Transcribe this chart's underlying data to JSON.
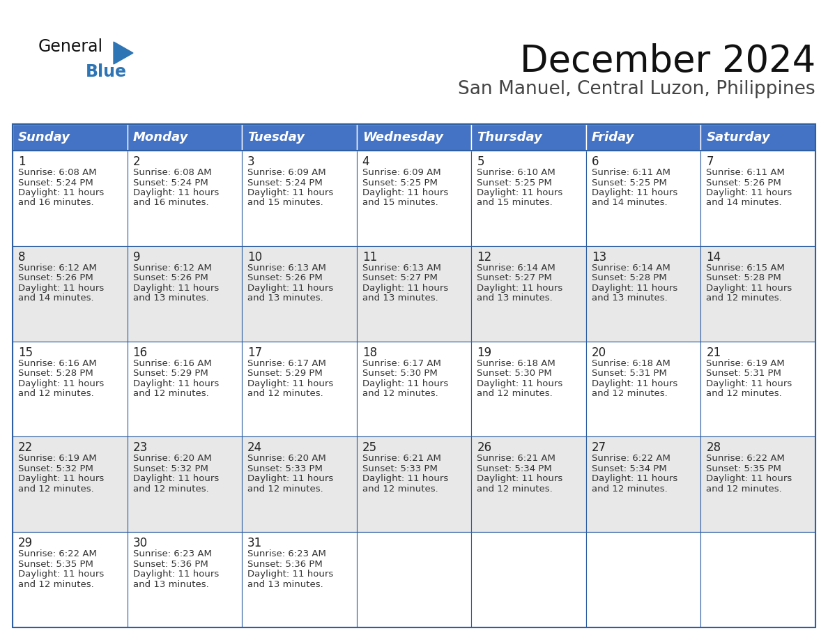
{
  "title": "December 2024",
  "subtitle": "San Manuel, Central Luzon, Philippines",
  "header_color": "#4472C4",
  "header_text_color": "#FFFFFF",
  "cell_bg_even": "#FFFFFF",
  "cell_bg_odd": "#E8E8E8",
  "border_color": "#2E5FA3",
  "text_color": "#333333",
  "day_number_color": "#222222",
  "day_names": [
    "Sunday",
    "Monday",
    "Tuesday",
    "Wednesday",
    "Thursday",
    "Friday",
    "Saturday"
  ],
  "title_fontsize": 38,
  "subtitle_fontsize": 19,
  "day_header_fontsize": 13,
  "cell_day_fontsize": 12,
  "cell_text_fontsize": 9.5,
  "weeks": [
    [
      {
        "day": 1,
        "sunrise": "6:08 AM",
        "sunset": "5:24 PM",
        "daylight": "11 hours\nand 16 minutes."
      },
      {
        "day": 2,
        "sunrise": "6:08 AM",
        "sunset": "5:24 PM",
        "daylight": "11 hours\nand 16 minutes."
      },
      {
        "day": 3,
        "sunrise": "6:09 AM",
        "sunset": "5:24 PM",
        "daylight": "11 hours\nand 15 minutes."
      },
      {
        "day": 4,
        "sunrise": "6:09 AM",
        "sunset": "5:25 PM",
        "daylight": "11 hours\nand 15 minutes."
      },
      {
        "day": 5,
        "sunrise": "6:10 AM",
        "sunset": "5:25 PM",
        "daylight": "11 hours\nand 15 minutes."
      },
      {
        "day": 6,
        "sunrise": "6:11 AM",
        "sunset": "5:25 PM",
        "daylight": "11 hours\nand 14 minutes."
      },
      {
        "day": 7,
        "sunrise": "6:11 AM",
        "sunset": "5:26 PM",
        "daylight": "11 hours\nand 14 minutes."
      }
    ],
    [
      {
        "day": 8,
        "sunrise": "6:12 AM",
        "sunset": "5:26 PM",
        "daylight": "11 hours\nand 14 minutes."
      },
      {
        "day": 9,
        "sunrise": "6:12 AM",
        "sunset": "5:26 PM",
        "daylight": "11 hours\nand 13 minutes."
      },
      {
        "day": 10,
        "sunrise": "6:13 AM",
        "sunset": "5:26 PM",
        "daylight": "11 hours\nand 13 minutes."
      },
      {
        "day": 11,
        "sunrise": "6:13 AM",
        "sunset": "5:27 PM",
        "daylight": "11 hours\nand 13 minutes."
      },
      {
        "day": 12,
        "sunrise": "6:14 AM",
        "sunset": "5:27 PM",
        "daylight": "11 hours\nand 13 minutes."
      },
      {
        "day": 13,
        "sunrise": "6:14 AM",
        "sunset": "5:28 PM",
        "daylight": "11 hours\nand 13 minutes."
      },
      {
        "day": 14,
        "sunrise": "6:15 AM",
        "sunset": "5:28 PM",
        "daylight": "11 hours\nand 12 minutes."
      }
    ],
    [
      {
        "day": 15,
        "sunrise": "6:16 AM",
        "sunset": "5:28 PM",
        "daylight": "11 hours\nand 12 minutes."
      },
      {
        "day": 16,
        "sunrise": "6:16 AM",
        "sunset": "5:29 PM",
        "daylight": "11 hours\nand 12 minutes."
      },
      {
        "day": 17,
        "sunrise": "6:17 AM",
        "sunset": "5:29 PM",
        "daylight": "11 hours\nand 12 minutes."
      },
      {
        "day": 18,
        "sunrise": "6:17 AM",
        "sunset": "5:30 PM",
        "daylight": "11 hours\nand 12 minutes."
      },
      {
        "day": 19,
        "sunrise": "6:18 AM",
        "sunset": "5:30 PM",
        "daylight": "11 hours\nand 12 minutes."
      },
      {
        "day": 20,
        "sunrise": "6:18 AM",
        "sunset": "5:31 PM",
        "daylight": "11 hours\nand 12 minutes."
      },
      {
        "day": 21,
        "sunrise": "6:19 AM",
        "sunset": "5:31 PM",
        "daylight": "11 hours\nand 12 minutes."
      }
    ],
    [
      {
        "day": 22,
        "sunrise": "6:19 AM",
        "sunset": "5:32 PM",
        "daylight": "11 hours\nand 12 minutes."
      },
      {
        "day": 23,
        "sunrise": "6:20 AM",
        "sunset": "5:32 PM",
        "daylight": "11 hours\nand 12 minutes."
      },
      {
        "day": 24,
        "sunrise": "6:20 AM",
        "sunset": "5:33 PM",
        "daylight": "11 hours\nand 12 minutes."
      },
      {
        "day": 25,
        "sunrise": "6:21 AM",
        "sunset": "5:33 PM",
        "daylight": "11 hours\nand 12 minutes."
      },
      {
        "day": 26,
        "sunrise": "6:21 AM",
        "sunset": "5:34 PM",
        "daylight": "11 hours\nand 12 minutes."
      },
      {
        "day": 27,
        "sunrise": "6:22 AM",
        "sunset": "5:34 PM",
        "daylight": "11 hours\nand 12 minutes."
      },
      {
        "day": 28,
        "sunrise": "6:22 AM",
        "sunset": "5:35 PM",
        "daylight": "11 hours\nand 12 minutes."
      }
    ],
    [
      {
        "day": 29,
        "sunrise": "6:22 AM",
        "sunset": "5:35 PM",
        "daylight": "11 hours\nand 12 minutes."
      },
      {
        "day": 30,
        "sunrise": "6:23 AM",
        "sunset": "5:36 PM",
        "daylight": "11 hours\nand 13 minutes."
      },
      {
        "day": 31,
        "sunrise": "6:23 AM",
        "sunset": "5:36 PM",
        "daylight": "11 hours\nand 13 minutes."
      },
      null,
      null,
      null,
      null
    ]
  ],
  "logo_general_color": "#111111",
  "logo_blue_color": "#2E75B6",
  "logo_triangle_color": "#2E75B6"
}
